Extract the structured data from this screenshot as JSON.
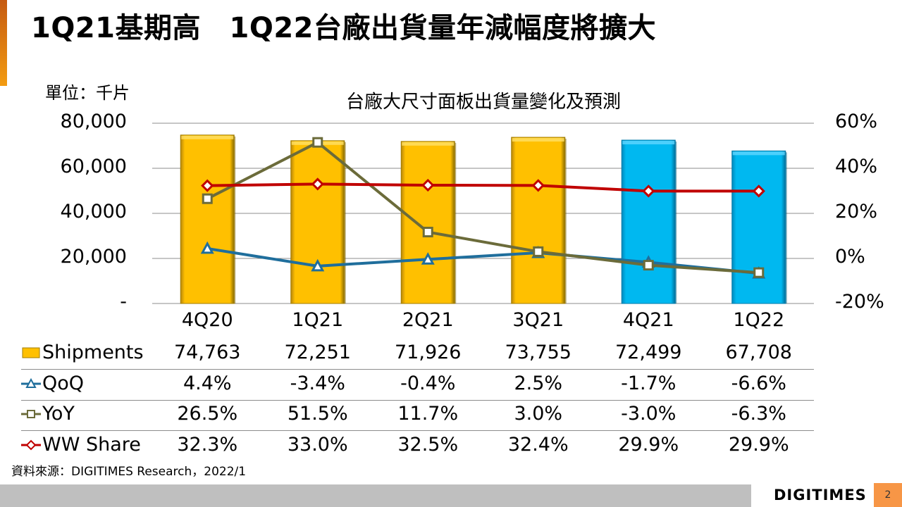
{
  "slide": {
    "title": "1Q21基期高　1Q22台廠出貨量年減幅度將擴大",
    "unit_label": "單位：千片",
    "source": "資料來源：DIGITIMES Research，2022/1",
    "logo_text": "DIGITIMES",
    "page_number": "2"
  },
  "colors": {
    "accent": "#e67e22",
    "bar_actual": "#ffc000",
    "bar_forecast": "#00b0f0",
    "qoq": "#1f6e9c",
    "yoy": "#6b6b3a",
    "ww_share": "#c00000",
    "page_badge": "#f79646"
  },
  "chart_data": {
    "type": "bar+line",
    "title": "台廠大尺寸面板出貨量變化及預測",
    "categories": [
      "4Q20",
      "1Q21",
      "2Q21",
      "3Q21",
      "4Q21",
      "1Q22"
    ],
    "forecast_from_index": 4,
    "y_left": {
      "range": [
        0,
        80000
      ],
      "ticks": [
        0,
        20000,
        40000,
        60000,
        80000
      ],
      "tick_labels": [
        "-",
        "20,000",
        "40,000",
        "60,000",
        "80,000"
      ]
    },
    "y_right": {
      "range": [
        -20,
        60
      ],
      "ticks": [
        -20,
        0,
        20,
        40,
        60
      ],
      "tick_labels": [
        "-20%",
        "0%",
        "20%",
        "40%",
        "60%"
      ]
    },
    "grid": true,
    "series": [
      {
        "name": "Shipments",
        "type": "bar",
        "axis": "left",
        "values": [
          74763,
          72251,
          71926,
          73755,
          72499,
          67708
        ],
        "labels": [
          "74,763",
          "72,251",
          "71,926",
          "73,755",
          "72,499",
          "67,708"
        ]
      },
      {
        "name": "QoQ",
        "type": "line",
        "marker": "triangle",
        "axis": "right",
        "values": [
          4.4,
          -3.4,
          -0.4,
          2.5,
          -1.7,
          -6.6
        ],
        "labels": [
          "4.4%",
          "-3.4%",
          "-0.4%",
          "2.5%",
          "-1.7%",
          "-6.6%"
        ]
      },
      {
        "name": "YoY",
        "type": "line",
        "marker": "square",
        "axis": "right",
        "values": [
          26.5,
          51.5,
          11.7,
          3.0,
          -3.0,
          -6.3
        ],
        "labels": [
          "26.5%",
          "51.5%",
          "11.7%",
          "3.0%",
          "-3.0%",
          "-6.3%"
        ]
      },
      {
        "name": "WW Share",
        "type": "line",
        "marker": "diamond",
        "axis": "right",
        "values": [
          32.3,
          33.0,
          32.5,
          32.4,
          29.9,
          29.9
        ],
        "labels": [
          "32.3%",
          "33.0%",
          "32.5%",
          "32.4%",
          "29.9%",
          "29.9%"
        ]
      }
    ],
    "legend": "data-table-below"
  }
}
